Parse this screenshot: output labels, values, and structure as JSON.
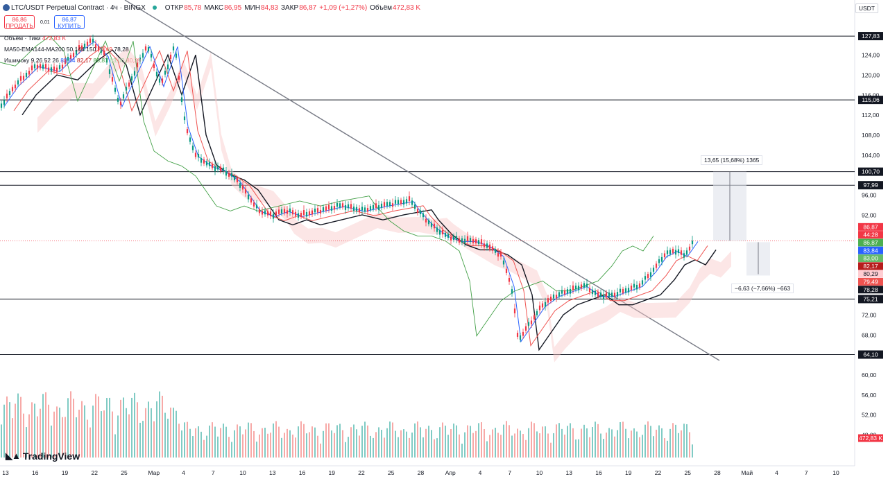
{
  "header": {
    "symbol": "LTC/USDT Perpetual Contract · 4ч · BINGX",
    "open_label": "ОТКР",
    "open": "85,78",
    "high_label": "МАКС",
    "high": "86,95",
    "low_label": "МИН",
    "low": "84,83",
    "close_label": "ЗАКР",
    "close": "86,87",
    "change": "+1,09 (+1,27%)",
    "volume_label": "Объём",
    "volume": "472,83 K"
  },
  "trade": {
    "sell_price": "86,86",
    "sell_label": "ПРОДАТЬ",
    "spread": "0,01",
    "buy_price": "86,87",
    "buy_label": "КУПИТЬ"
  },
  "legend": {
    "volume": {
      "name": "Объём · Тики",
      "value": "472,83 K"
    },
    "ma": {
      "name": "MA50-EMA144-MA200 50 144 150",
      "v1": "79,49",
      "v2": "78,28"
    },
    "ichimoku": {
      "name": "Ишимоку 9 26 52 26",
      "v1": "83,84",
      "v2": "82,17",
      "v3": "86,87",
      "v4": "83,00",
      "v5": "80,29"
    }
  },
  "currency": "USDT",
  "logo": "TradingView",
  "measure_up": "13,65 (15,68%) 1365",
  "measure_down": "−6,63 (−7,66%) −663",
  "chart_data": {
    "type": "candlestick",
    "x_axis_labels": [
      "13",
      "16",
      "19",
      "22",
      "25",
      "Мар",
      "4",
      "7",
      "10",
      "13",
      "16",
      "19",
      "22",
      "25",
      "28",
      "Апр",
      "4",
      "7",
      "10",
      "13",
      "16",
      "19",
      "22",
      "25",
      "28",
      "Май",
      "4",
      "7",
      "10"
    ],
    "y_axis_labels": [
      "124,00",
      "120,00",
      "116,00",
      "112,00",
      "108,00",
      "104,00",
      "96,00",
      "92,00",
      "72,00",
      "68,00",
      "60,00",
      "56,00",
      "52,00",
      "48,00"
    ],
    "ylim": [
      46,
      132
    ],
    "levels": [
      "127,83",
      "115,06",
      "100,70",
      "97,99",
      "75,21",
      "64,10"
    ],
    "last_price_labels": [
      {
        "value": "86,87",
        "color": "#f23645"
      },
      {
        "value": "44:28",
        "color": "#f23645"
      },
      {
        "value": "86,87",
        "color": "#4caf50"
      },
      {
        "value": "83,84",
        "color": "#2962ff"
      },
      {
        "value": "83,00",
        "color": "#66bb6a"
      },
      {
        "value": "82,17",
        "color": "#b71c1c"
      },
      {
        "value": "80,29",
        "color": "#ffcdd2"
      },
      {
        "value": "79,49",
        "color": "#ef5350"
      },
      {
        "value": "78,28",
        "color": "#131722"
      },
      {
        "value": "75,21",
        "color": "#131722"
      },
      {
        "value": "472,83 K",
        "color": "#f23645"
      }
    ],
    "price_path": [
      [
        0,
        114
      ],
      [
        0.02,
        118
      ],
      [
        0.05,
        122
      ],
      [
        0.08,
        121
      ],
      [
        0.11,
        125
      ],
      [
        0.13,
        127
      ],
      [
        0.15,
        124
      ],
      [
        0.17,
        114
      ],
      [
        0.19,
        120
      ],
      [
        0.21,
        126
      ],
      [
        0.23,
        118
      ],
      [
        0.25,
        126
      ],
      [
        0.265,
        110
      ],
      [
        0.28,
        104
      ],
      [
        0.3,
        102
      ],
      [
        0.32,
        101
      ],
      [
        0.34,
        99
      ],
      [
        0.36,
        95
      ],
      [
        0.37,
        93
      ],
      [
        0.39,
        92
      ],
      [
        0.41,
        93
      ],
      [
        0.43,
        92
      ],
      [
        0.46,
        93
      ],
      [
        0.49,
        94
      ],
      [
        0.52,
        93
      ],
      [
        0.55,
        94
      ],
      [
        0.57,
        94.5
      ],
      [
        0.59,
        95
      ],
      [
        0.6,
        93
      ],
      [
        0.62,
        90
      ],
      [
        0.64,
        88
      ],
      [
        0.66,
        87
      ],
      [
        0.68,
        87
      ],
      [
        0.7,
        86
      ],
      [
        0.72,
        84
      ],
      [
        0.735,
        78
      ],
      [
        0.745,
        67
      ],
      [
        0.76,
        70
      ],
      [
        0.78,
        74
      ],
      [
        0.8,
        76
      ],
      [
        0.82,
        77
      ],
      [
        0.84,
        78
      ],
      [
        0.86,
        76
      ],
      [
        0.88,
        76
      ],
      [
        0.9,
        77
      ],
      [
        0.92,
        78
      ],
      [
        0.94,
        81
      ],
      [
        0.955,
        84
      ],
      [
        0.97,
        85
      ],
      [
        0.985,
        84
      ],
      [
        1.0,
        87
      ]
    ],
    "volume_scale_max": 1
  }
}
